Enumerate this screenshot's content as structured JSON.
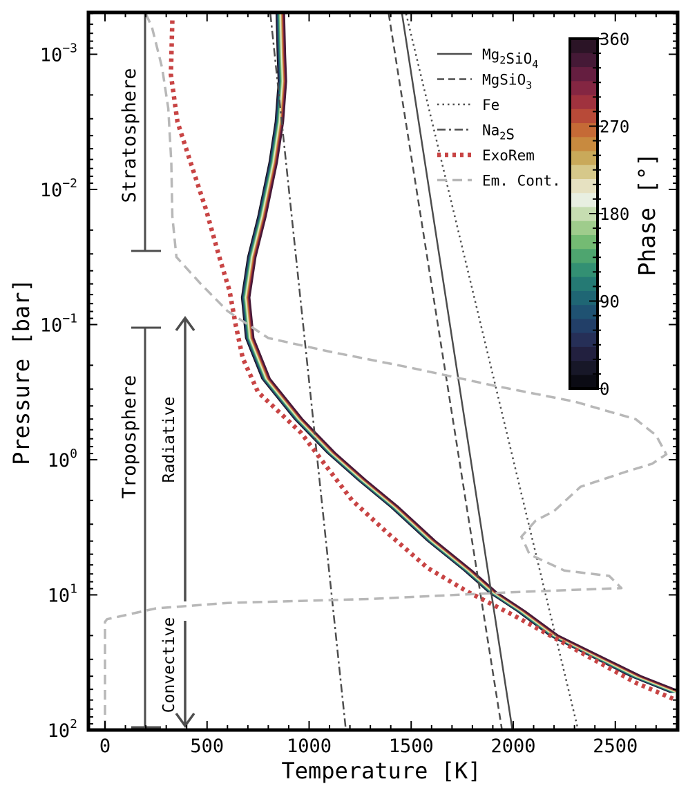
{
  "chart_data": {
    "type": "line",
    "xlabel": "Temperature [K]",
    "ylabel": "Pressure [bar]",
    "xlim": [
      -80,
      2800
    ],
    "ylim_log10": [
      -3.3,
      2.0
    ],
    "y_inverted": true,
    "x_ticks": [
      {
        "value": 0,
        "label": "0"
      },
      {
        "value": 500,
        "label": "500"
      },
      {
        "value": 1000,
        "label": "1000"
      },
      {
        "value": 1500,
        "label": "1500"
      },
      {
        "value": 2000,
        "label": "2000"
      },
      {
        "value": 2500,
        "label": "2500"
      }
    ],
    "y_ticks": [
      {
        "log10": -3,
        "base": "10",
        "exp": "−3"
      },
      {
        "log10": -2,
        "base": "10",
        "exp": "−2"
      },
      {
        "log10": -1,
        "base": "10",
        "exp": "−1"
      },
      {
        "log10": 0,
        "base": "10",
        "exp": "0"
      },
      {
        "log10": 1,
        "base": "10",
        "exp": "1"
      },
      {
        "log10": 2,
        "base": "10",
        "exp": "2"
      }
    ],
    "series": [
      {
        "name": "Mg2SiO4",
        "label_main": "Mg",
        "label_parts": [
          [
            "Mg",
            ""
          ],
          [
            "2",
            "sub"
          ],
          [
            "SiO",
            ""
          ],
          [
            "4",
            "sub"
          ]
        ],
        "style": "solid",
        "color": "#4d4d4d",
        "points": [
          [
            1455,
            -3.3
          ],
          [
            1996,
            2.0
          ]
        ]
      },
      {
        "name": "MgSiO3",
        "label_parts": [
          [
            "MgSiO",
            ""
          ],
          [
            "3",
            "sub"
          ]
        ],
        "style": "dashed",
        "color": "#4d4d4d",
        "points": [
          [
            1390,
            -3.3
          ],
          [
            1945,
            2.0
          ]
        ]
      },
      {
        "name": "Fe",
        "label_parts": [
          [
            "Fe",
            ""
          ]
        ],
        "style": "dotted",
        "color": "#4d4d4d",
        "points": [
          [
            1475,
            -3.3
          ],
          [
            2318,
            2.0
          ]
        ]
      },
      {
        "name": "Na2S",
        "label_parts": [
          [
            "Na",
            ""
          ],
          [
            "2",
            "sub"
          ],
          [
            "S",
            ""
          ]
        ],
        "style": "dashdot",
        "color": "#4d4d4d",
        "points": [
          [
            810,
            -3.3
          ],
          [
            1180,
            2.0
          ]
        ]
      },
      {
        "name": "ExoRem",
        "label_parts": [
          [
            "ExoRem",
            ""
          ]
        ],
        "style": "thickdotted",
        "color": "#c84444",
        "points": [
          [
            330,
            -3.25
          ],
          [
            323,
            -2.85
          ],
          [
            355,
            -2.5
          ],
          [
            430,
            -2.15
          ],
          [
            495,
            -1.85
          ],
          [
            560,
            -1.5
          ],
          [
            610,
            -1.25
          ],
          [
            640,
            -1.0
          ],
          [
            675,
            -0.75
          ],
          [
            750,
            -0.5
          ],
          [
            960,
            -0.2
          ],
          [
            1060,
            0.0
          ],
          [
            1210,
            0.3
          ],
          [
            1390,
            0.55
          ],
          [
            1580,
            0.8
          ],
          [
            1780,
            0.98
          ],
          [
            2000,
            1.15
          ],
          [
            2300,
            1.4
          ],
          [
            2600,
            1.65
          ],
          [
            2800,
            1.78
          ]
        ]
      },
      {
        "name": "Em. Cont.",
        "label_parts": [
          [
            "Em. Cont.",
            ""
          ]
        ],
        "style": "longdash",
        "color": "#b8b8b8",
        "points": [
          [
            0,
            2.0
          ],
          [
            0,
            1.2
          ],
          [
            10,
            1.18
          ],
          [
            250,
            1.1
          ],
          [
            600,
            1.06
          ],
          [
            1300,
            1.03
          ],
          [
            2000,
            0.98
          ],
          [
            2530,
            0.95
          ],
          [
            2470,
            0.86
          ],
          [
            2250,
            0.82
          ],
          [
            2080,
            0.7
          ],
          [
            2050,
            0.6
          ],
          [
            2040,
            0.57
          ],
          [
            2110,
            0.45
          ],
          [
            2200,
            0.38
          ],
          [
            2330,
            0.2
          ],
          [
            2550,
            0.09
          ],
          [
            2680,
            0.03
          ],
          [
            2750,
            -0.04
          ],
          [
            2700,
            -0.18
          ],
          [
            2600,
            -0.3
          ],
          [
            2300,
            -0.43
          ],
          [
            1900,
            -0.55
          ],
          [
            1500,
            -0.68
          ],
          [
            1100,
            -0.8
          ],
          [
            800,
            -0.9
          ],
          [
            600,
            -1.1
          ],
          [
            470,
            -1.3
          ],
          [
            350,
            -1.5
          ],
          [
            330,
            -1.8
          ],
          [
            325,
            -2.2
          ],
          [
            310,
            -2.6
          ],
          [
            280,
            -2.9
          ],
          [
            230,
            -3.2
          ],
          [
            200,
            -3.3
          ]
        ]
      }
    ],
    "phase_profiles": {
      "count": 24,
      "base_points": [
        [
          860,
          -3.3
        ],
        [
          865,
          -3.0
        ],
        [
          870,
          -2.8
        ],
        [
          855,
          -2.5
        ],
        [
          825,
          -2.2
        ],
        [
          770,
          -1.8
        ],
        [
          720,
          -1.5
        ],
        [
          690,
          -1.2
        ],
        [
          710,
          -0.9
        ],
        [
          790,
          -0.6
        ],
        [
          950,
          -0.3
        ],
        [
          1110,
          -0.05
        ],
        [
          1260,
          0.15
        ],
        [
          1420,
          0.35
        ],
        [
          1600,
          0.6
        ],
        [
          1780,
          0.82
        ],
        [
          1900,
          0.98
        ],
        [
          2040,
          1.12
        ],
        [
          2200,
          1.3
        ],
        [
          2400,
          1.45
        ],
        [
          2600,
          1.6
        ],
        [
          2800,
          1.72
        ]
      ]
    },
    "colorbar": {
      "label": "Phase [°]",
      "range": [
        0,
        360
      ],
      "ticks": [
        {
          "value": 0,
          "label": "0"
        },
        {
          "value": 90,
          "label": "90"
        },
        {
          "value": 180,
          "label": "180"
        },
        {
          "value": 270,
          "label": "270"
        },
        {
          "value": 360,
          "label": "360"
        }
      ],
      "colors": [
        "#0b0b14",
        "#171728",
        "#22203f",
        "#262f57",
        "#223f68",
        "#1f5272",
        "#1f6674",
        "#257a74",
        "#339073",
        "#4ea56f",
        "#74bb73",
        "#9fcc8c",
        "#c6ddb1",
        "#e8efe1",
        "#e6e1c1",
        "#d6c88a",
        "#c9a95a",
        "#c88a3f",
        "#c56a36",
        "#b84a38",
        "#a0323e",
        "#842642",
        "#651e40",
        "#451936",
        "#2b1426"
      ]
    },
    "annotations": {
      "stratosphere": "Stratosphere",
      "troposphere": "Troposphere",
      "radiative": "Radiative",
      "convective": "Convective"
    }
  }
}
